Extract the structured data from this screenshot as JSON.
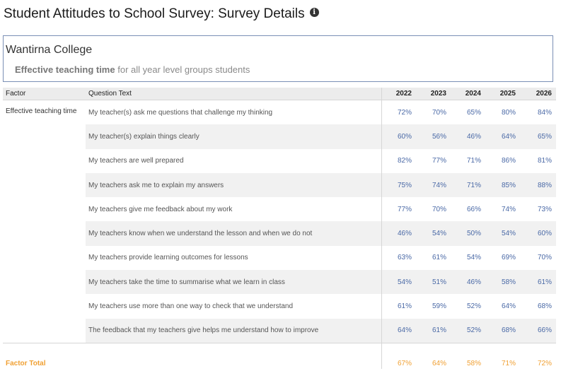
{
  "page": {
    "title": "Student Attitudes to School Survey: Survey Details",
    "info_icon": "i"
  },
  "school": {
    "name": "Wantirna College",
    "subtitle_bold": "Effective teaching time",
    "subtitle_rest": " for all year level groups students"
  },
  "table": {
    "headers": {
      "factor": "Factor",
      "question": "Question Text",
      "years": [
        "2022",
        "2023",
        "2024",
        "2025",
        "2026"
      ]
    },
    "factor_name": "Effective teaching time",
    "rows": [
      {
        "question": "My teacher(s) ask me questions that challenge my thinking",
        "values": [
          "72%",
          "70%",
          "65%",
          "80%",
          "84%"
        ]
      },
      {
        "question": "My teacher(s) explain things clearly",
        "values": [
          "60%",
          "56%",
          "46%",
          "64%",
          "65%"
        ]
      },
      {
        "question": "My teachers are well prepared",
        "values": [
          "82%",
          "77%",
          "71%",
          "86%",
          "81%"
        ]
      },
      {
        "question": "My teachers ask me to explain my answers",
        "values": [
          "75%",
          "74%",
          "71%",
          "85%",
          "88%"
        ]
      },
      {
        "question": "My teachers give me feedback about my work",
        "values": [
          "77%",
          "70%",
          "66%",
          "74%",
          "73%"
        ]
      },
      {
        "question": "My teachers know when we understand the lesson and when we do not",
        "values": [
          "46%",
          "54%",
          "50%",
          "54%",
          "60%"
        ]
      },
      {
        "question": "My teachers provide learning outcomes for lessons",
        "values": [
          "63%",
          "61%",
          "54%",
          "69%",
          "70%"
        ]
      },
      {
        "question": "My teachers take the time to summarise what we learn in class",
        "values": [
          "54%",
          "51%",
          "46%",
          "58%",
          "61%"
        ]
      },
      {
        "question": "My teachers use more than one way to check that we understand",
        "values": [
          "61%",
          "59%",
          "52%",
          "64%",
          "68%"
        ]
      },
      {
        "question": "The feedback that my teachers give helps me understand how to improve",
        "values": [
          "64%",
          "61%",
          "52%",
          "68%",
          "66%"
        ]
      }
    ],
    "total": {
      "label": "Factor Total",
      "values": [
        "67%",
        "64%",
        "58%",
        "71%",
        "72%"
      ]
    }
  },
  "colors": {
    "value_text": "#4a69a6",
    "total_text": "#f0a033",
    "box_border": "#7a8fb5",
    "header_bg": "#ececec",
    "row_shade": "#f1f1f1"
  }
}
